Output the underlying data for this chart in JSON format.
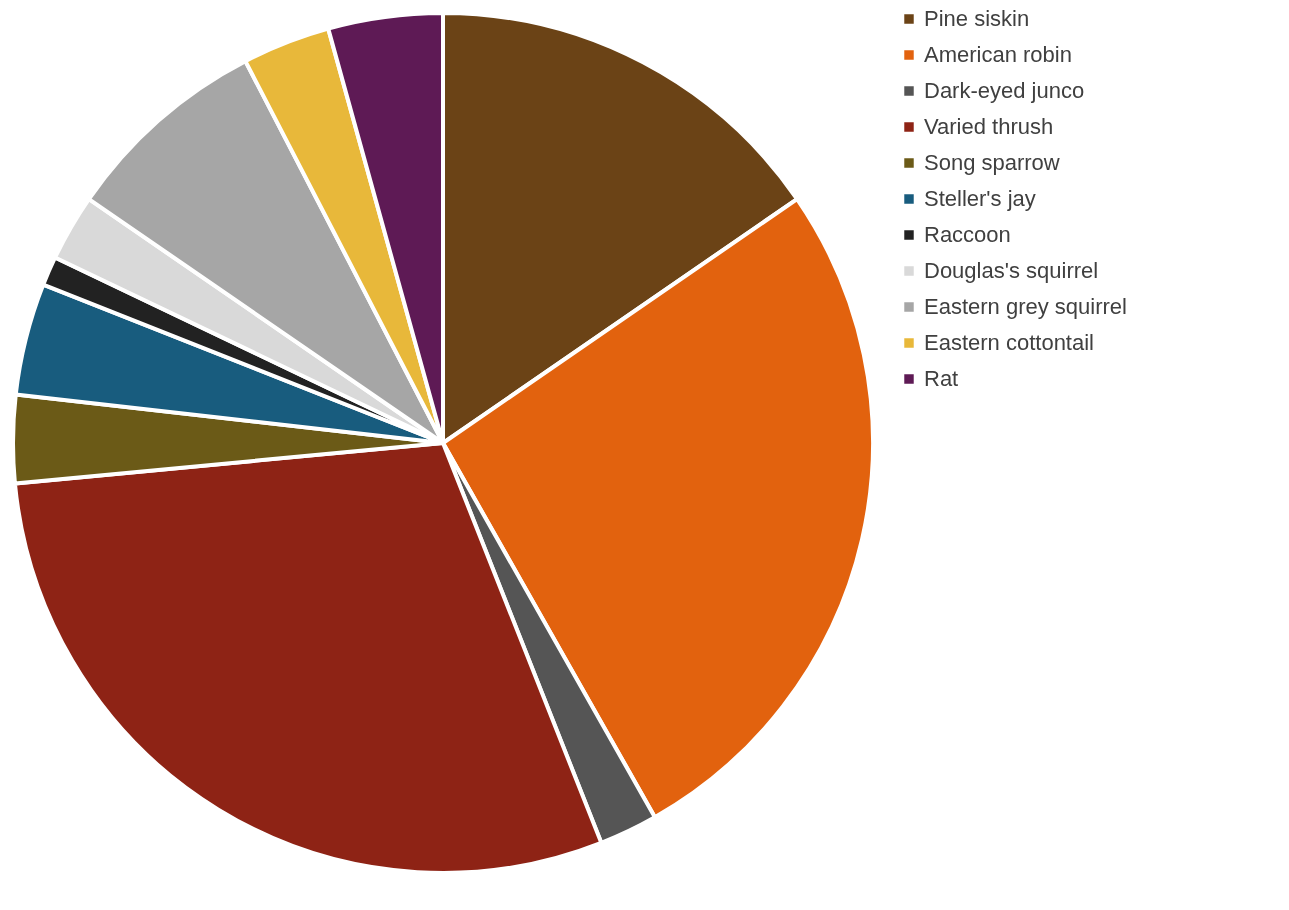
{
  "chart_data": {
    "type": "pie",
    "categories": [
      "Pine siskin",
      "American robin",
      "Dark-eyed junco",
      "Varied thrush",
      "Song sparrow",
      "Steller's jay",
      "Raccoon",
      "Douglas's squirrel",
      "Eastern grey squirrel",
      "Eastern cottontail",
      "Rat"
    ],
    "values": [
      15.4,
      26.4,
      2.2,
      29.5,
      3.3,
      4.2,
      1.1,
      2.5,
      7.8,
      3.3,
      4.3
    ],
    "colors": [
      "#6b4316",
      "#e2620e",
      "#555555",
      "#8e2315",
      "#6b5a17",
      "#185c7e",
      "#222222",
      "#d9d9d9",
      "#a6a6a6",
      "#e8b83a",
      "#5e1a55"
    ],
    "legend": "right"
  }
}
